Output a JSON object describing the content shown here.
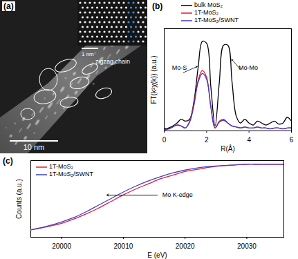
{
  "chart_data": [
    {
      "type": "image",
      "title": "(a)",
      "annotations": [
        "1 nm",
        "zigzag chain",
        "10 nm"
      ]
    },
    {
      "type": "line",
      "title": "(b)",
      "xlabel": "R(Å)",
      "ylabel": "FT(k²χ(k)) (a.u.)",
      "x": [
        0,
        0.2,
        0.4,
        0.6,
        0.8,
        1,
        1.2,
        1.4,
        1.6,
        1.8,
        2,
        2.2,
        2.4,
        2.6,
        2.8,
        3,
        3.2,
        3.4,
        3.6,
        3.8,
        4,
        4.2,
        4.4,
        4.6,
        4.8,
        5,
        5.2,
        5.4,
        5.6,
        5.8,
        6
      ],
      "series": [
        {
          "name": "bulk MoS₂",
          "color": "#000000",
          "values": [
            0.02,
            0.03,
            0.05,
            0.08,
            0.12,
            0.1,
            0.12,
            0.3,
            0.65,
            0.92,
            0.9,
            0.45,
            0.05,
            0.5,
            0.88,
            0.88,
            0.5,
            0.15,
            0.08,
            0.12,
            0.08,
            0.06,
            0.1,
            0.08,
            0.06,
            0.08,
            0.1,
            0.07,
            0.08,
            0.14,
            0.1
          ]
        },
        {
          "name": "1T-MoS₂",
          "color": "#e8142a",
          "values": [
            0.01,
            0.02,
            0.04,
            0.06,
            0.05,
            0.03,
            0.1,
            0.28,
            0.52,
            0.62,
            0.55,
            0.25,
            0.03,
            0.1,
            0.12,
            0.08,
            0.05,
            0.04,
            0.03,
            0.04,
            0.03,
            0.03,
            0.04,
            0.03,
            0.03,
            0.02,
            0.03,
            0.03,
            0.02,
            0.03,
            0.03
          ]
        },
        {
          "name": "1T-MoS₂/SWNT",
          "color": "#3a3ad0",
          "values": [
            0.01,
            0.02,
            0.04,
            0.06,
            0.05,
            0.03,
            0.09,
            0.26,
            0.5,
            0.59,
            0.53,
            0.24,
            0.03,
            0.09,
            0.11,
            0.08,
            0.05,
            0.04,
            0.03,
            0.04,
            0.03,
            0.03,
            0.04,
            0.03,
            0.03,
            0.02,
            0.03,
            0.03,
            0.02,
            0.03,
            0.03
          ]
        }
      ],
      "xlim": [
        0,
        6
      ],
      "xticks": [
        0,
        2,
        4,
        6
      ],
      "ylim": [
        0,
        1.05
      ],
      "yticks": [],
      "tick_labels": "x",
      "annotations": [
        "Mo-S",
        "Mo-Mo"
      ]
    },
    {
      "type": "line",
      "title": "(c)",
      "xlabel": "E (eV)",
      "ylabel": "Counts (a.u.)",
      "x": [
        19995,
        19998,
        20000,
        20002,
        20004,
        20006,
        20008,
        20010,
        20012,
        20014,
        20016,
        20018,
        20020,
        20022,
        20024,
        20026,
        20028,
        20030,
        20032,
        20034,
        20036
      ],
      "series": [
        {
          "name": "1T-MoS₂",
          "color": "#e01e3c",
          "values": [
            0.1,
            0.15,
            0.19,
            0.25,
            0.32,
            0.4,
            0.49,
            0.58,
            0.66,
            0.73,
            0.8,
            0.85,
            0.9,
            0.93,
            0.96,
            0.98,
            0.99,
            1.0,
            1.0,
            1.0,
            1.0
          ]
        },
        {
          "name": "1T-MoS₂/SWNT",
          "color": "#4040c8",
          "values": [
            0.1,
            0.16,
            0.21,
            0.27,
            0.35,
            0.44,
            0.53,
            0.62,
            0.7,
            0.77,
            0.83,
            0.88,
            0.92,
            0.95,
            0.97,
            0.98,
            0.99,
            1.0,
            1.0,
            1.0,
            1.0
          ]
        }
      ],
      "xlim": [
        19995,
        20036
      ],
      "xticks": [
        20000,
        20010,
        20020,
        20030
      ],
      "ylim": [
        0,
        1.05
      ],
      "yticks": [],
      "tick_labels": "x",
      "annotations": [
        "Mo K-edge"
      ]
    }
  ]
}
